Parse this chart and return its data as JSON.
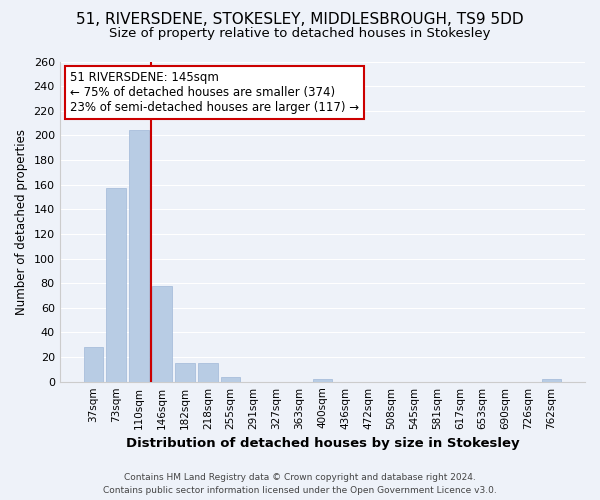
{
  "title": "51, RIVERSDENE, STOKESLEY, MIDDLESBROUGH, TS9 5DD",
  "subtitle": "Size of property relative to detached houses in Stokesley",
  "xlabel": "Distribution of detached houses by size in Stokesley",
  "ylabel": "Number of detached properties",
  "bar_labels": [
    "37sqm",
    "73sqm",
    "110sqm",
    "146sqm",
    "182sqm",
    "218sqm",
    "255sqm",
    "291sqm",
    "327sqm",
    "363sqm",
    "400sqm",
    "436sqm",
    "472sqm",
    "508sqm",
    "545sqm",
    "581sqm",
    "617sqm",
    "653sqm",
    "690sqm",
    "726sqm",
    "762sqm"
  ],
  "bar_values": [
    28,
    157,
    204,
    78,
    15,
    15,
    4,
    0,
    0,
    0,
    2,
    0,
    0,
    0,
    0,
    0,
    0,
    0,
    0,
    0,
    2
  ],
  "bar_color": "#b8cce4",
  "bar_edge_color": "#a0b8d8",
  "vline_x": 2.5,
  "vline_color": "#cc0000",
  "annotation_title": "51 RIVERSDENE: 145sqm",
  "annotation_line1": "← 75% of detached houses are smaller (374)",
  "annotation_line2": "23% of semi-detached houses are larger (117) →",
  "annotation_box_facecolor": "#ffffff",
  "annotation_box_edgecolor": "#cc0000",
  "ylim": [
    0,
    260
  ],
  "yticks": [
    0,
    20,
    40,
    60,
    80,
    100,
    120,
    140,
    160,
    180,
    200,
    220,
    240,
    260
  ],
  "footer_line1": "Contains HM Land Registry data © Crown copyright and database right 2024.",
  "footer_line2": "Contains public sector information licensed under the Open Government Licence v3.0.",
  "background_color": "#eef2f9",
  "grid_color": "#ffffff",
  "title_fontsize": 11,
  "subtitle_fontsize": 9.5,
  "ylabel_fontsize": 8.5,
  "xlabel_fontsize": 9.5,
  "tick_fontsize": 8,
  "xtick_fontsize": 7.5,
  "annotation_fontsize": 8.5,
  "footer_fontsize": 6.5
}
